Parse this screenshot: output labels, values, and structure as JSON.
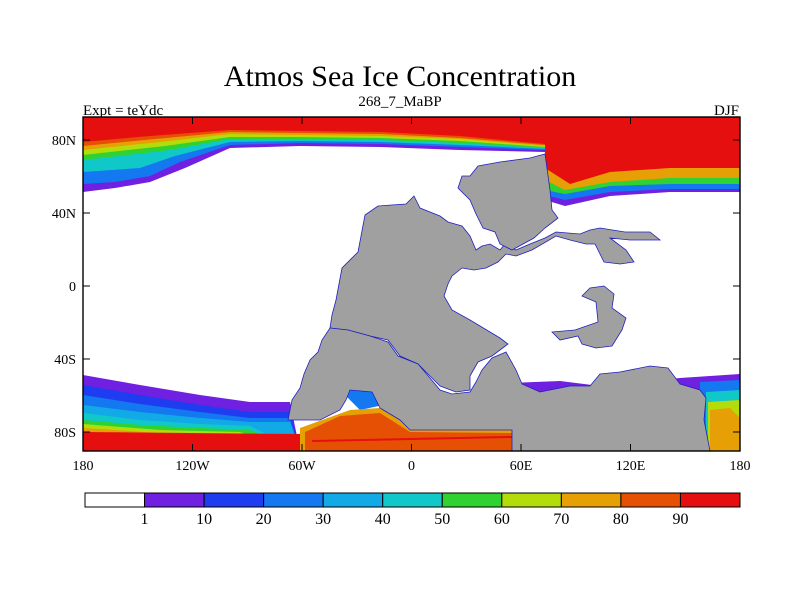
{
  "map": {
    "title": "Atmos Sea Ice Concentration",
    "subtitle": "268_7_MaBP",
    "left_label": "Expt = teYdc",
    "right_label": "DJF",
    "y_ticks": [
      "80N",
      "40N",
      "0",
      "40S",
      "80S"
    ],
    "x_ticks": [
      "180",
      "120W",
      "60W",
      "0",
      "60E",
      "120E",
      "180"
    ],
    "colors": {
      "land": "#a0a0a0",
      "ocean": "#ffffff"
    }
  },
  "colorbar": {
    "labels": [
      "1",
      "10",
      "20",
      "30",
      "40",
      "50",
      "60",
      "70",
      "80",
      "90"
    ],
    "colors": [
      "#ffffff",
      "#7020e0",
      "#1e3cf0",
      "#1478f0",
      "#12aae6",
      "#10c8c8",
      "#30d232",
      "#b4dc0a",
      "#e6a005",
      "#e65005",
      "#e60f0f"
    ]
  }
}
